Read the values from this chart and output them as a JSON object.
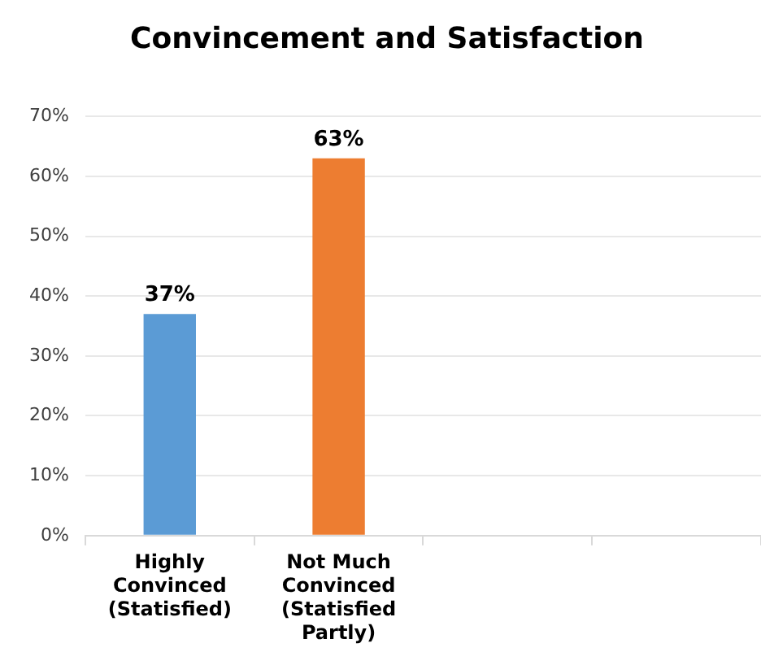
{
  "chart_data": {
    "type": "bar",
    "title": "Convincement and Satisfaction",
    "categories": [
      "Highly Convinced (Statisfied)",
      "Not Much Convinced (Statisfied Partly)",
      null,
      null
    ],
    "values": [
      37,
      63,
      null,
      null
    ],
    "colors": [
      "#5b9bd5",
      "#ed7d31",
      "#5b9bd5",
      "#5b9bd5"
    ],
    "value_labels": [
      "37%",
      "63%",
      null,
      null
    ],
    "ylim": [
      0,
      70
    ],
    "yticks": [
      {
        "value": 0,
        "label": "0%"
      },
      {
        "value": 10,
        "label": "10%"
      },
      {
        "value": 20,
        "label": "20%"
      },
      {
        "value": 30,
        "label": "30%"
      },
      {
        "value": 40,
        "label": "40%"
      },
      {
        "value": 50,
        "label": "50%"
      },
      {
        "value": 60,
        "label": "60%"
      },
      {
        "value": 70,
        "label": "70%"
      }
    ],
    "grid": "y",
    "legend": false
  }
}
